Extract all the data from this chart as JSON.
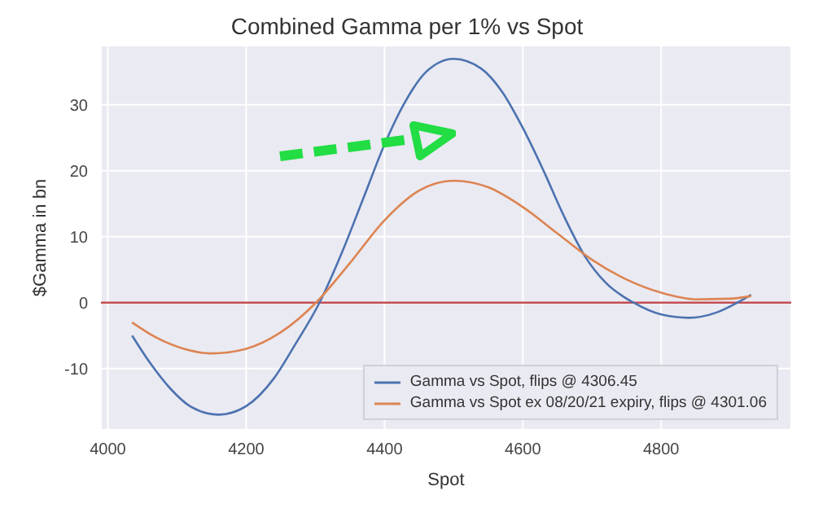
{
  "chart_data": {
    "type": "line",
    "title": "Combined Gamma per 1% vs Spot",
    "xlabel": "Spot",
    "ylabel": "$Gamma in bn",
    "xlim": [
      3990,
      4988
    ],
    "xticks": [
      4000,
      4200,
      4400,
      4600,
      4800
    ],
    "ylim": [
      -19.3,
      39
    ],
    "yticks": [
      -10,
      0,
      10,
      20,
      30
    ],
    "grid": true,
    "legend": "bottom right",
    "marker": "none",
    "line_style": "solid",
    "ref_lines": [
      {
        "axis": "y",
        "value": 0,
        "label": null,
        "color": "#c44e52"
      }
    ],
    "series": [
      {
        "name": "Gamma vs Spot, flips @ 4306.45",
        "color": "#4c72b0",
        "x": [
          4035,
          4060,
          4090,
          4120,
          4160,
          4200,
          4240,
          4270,
          4306,
          4340,
          4370,
          4400,
          4430,
          4460,
          4500,
          4540,
          4570,
          4600,
          4630,
          4660,
          4690,
          4720,
          4760,
          4800,
          4840,
          4880,
          4910,
          4930
        ],
        "values": [
          -5,
          -9,
          -13,
          -15.8,
          -17,
          -15.7,
          -11.5,
          -6.5,
          0,
          8,
          16,
          24,
          30.5,
          35,
          37,
          35.5,
          32,
          26.5,
          20,
          13,
          7,
          3,
          0,
          -1.8,
          -2.3,
          -1.5,
          0,
          1.2
        ]
      },
      {
        "name": "Gamma vs Spot ex 08/20/21 expiry, flips @ 4301.06",
        "color": "#dd8452",
        "x": [
          4035,
          4070,
          4110,
          4150,
          4200,
          4250,
          4301,
          4350,
          4400,
          4450,
          4500,
          4550,
          4600,
          4650,
          4700,
          4750,
          4800,
          4850,
          4900,
          4930
        ],
        "values": [
          -3,
          -5.3,
          -7,
          -7.7,
          -7,
          -4.5,
          0,
          6,
          12.5,
          17,
          18.5,
          17.5,
          14.5,
          10.5,
          6.5,
          3.5,
          1.5,
          0.5,
          0.6,
          1.0
        ]
      }
    ]
  }
}
